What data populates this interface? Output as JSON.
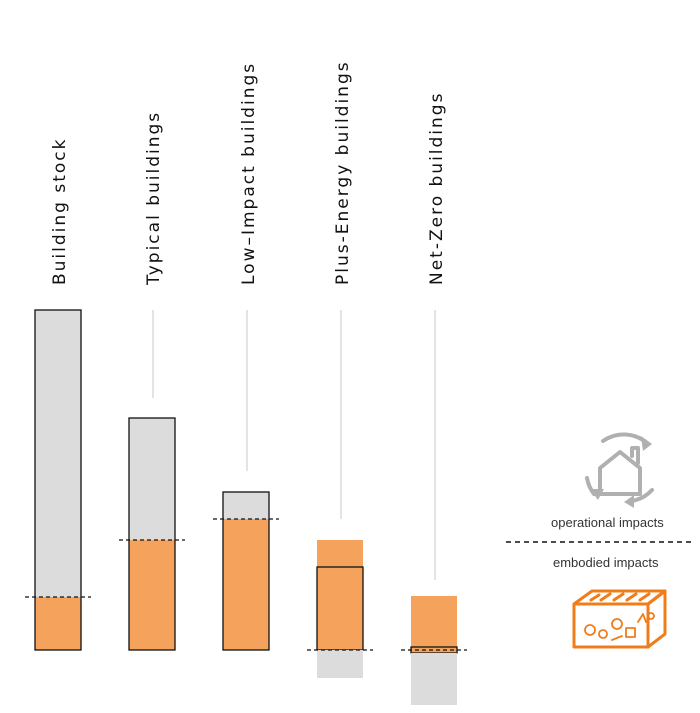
{
  "columns": [
    {
      "label": "Building stock"
    },
    {
      "label": "Typical buildings"
    },
    {
      "label": "Low–Impact buildings"
    },
    {
      "label": "Plus-Energy buildings"
    },
    {
      "label": "Net-Zero buildings"
    }
  ],
  "legend": {
    "operational": "operational impacts",
    "embodied": "embodied impacts"
  },
  "icons": {
    "operational": "house-recycle-icon",
    "embodied": "building-materials-icon"
  },
  "colors": {
    "operational": "#dcdcdc",
    "embodied": "#f5a35c",
    "icon_gray": "#b0b0b0",
    "icon_orange": "#f07d1a",
    "outline": "#111111"
  }
}
